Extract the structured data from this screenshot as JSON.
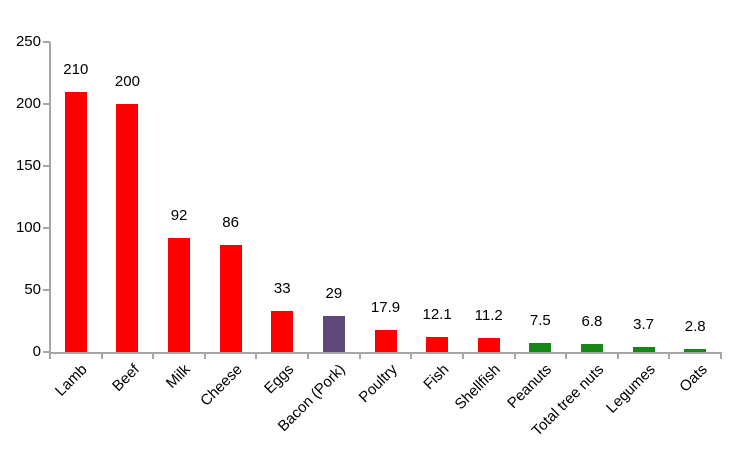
{
  "chart_data": {
    "type": "bar",
    "title": "",
    "xlabel": "",
    "ylabel": "",
    "categories": [
      "Lamb",
      "Beef",
      "Milk",
      "Cheese",
      "Eggs",
      "Bacon (Pork)",
      "Poultry",
      "Fish",
      "Shellfish",
      "Peanuts",
      "Total tree nuts",
      "Legumes",
      "Oats"
    ],
    "values": [
      210,
      200,
      92,
      86,
      33,
      29,
      17.9,
      12.1,
      11.2,
      7.5,
      6.8,
      3.7,
      2.8
    ],
    "value_labels": [
      "210",
      "200",
      "92",
      "86",
      "33",
      "29",
      "17.9",
      "12.1",
      "11.2",
      "7.5",
      "6.8",
      "3.7",
      "2.8"
    ],
    "bar_colors": [
      "#FF0000",
      "#FF0000",
      "#FF0000",
      "#FF0000",
      "#FF0000",
      "#5F497A",
      "#FF0000",
      "#FF0000",
      "#FF0000",
      "#178717",
      "#178717",
      "#178717",
      "#178717"
    ],
    "ylim": [
      0,
      250
    ],
    "yticks": [
      0,
      50,
      100,
      150,
      200,
      250
    ],
    "ytick_labels": [
      "0",
      "50",
      "100",
      "150",
      "200",
      "250"
    ],
    "grid": false,
    "legend": null,
    "colors": {
      "red_bar": "#FF0000",
      "purple_bar": "#5F497A",
      "green_bar": "#178717",
      "axis": "#A6A6A6",
      "text": "#000000",
      "background": "#FFFFFF"
    }
  }
}
